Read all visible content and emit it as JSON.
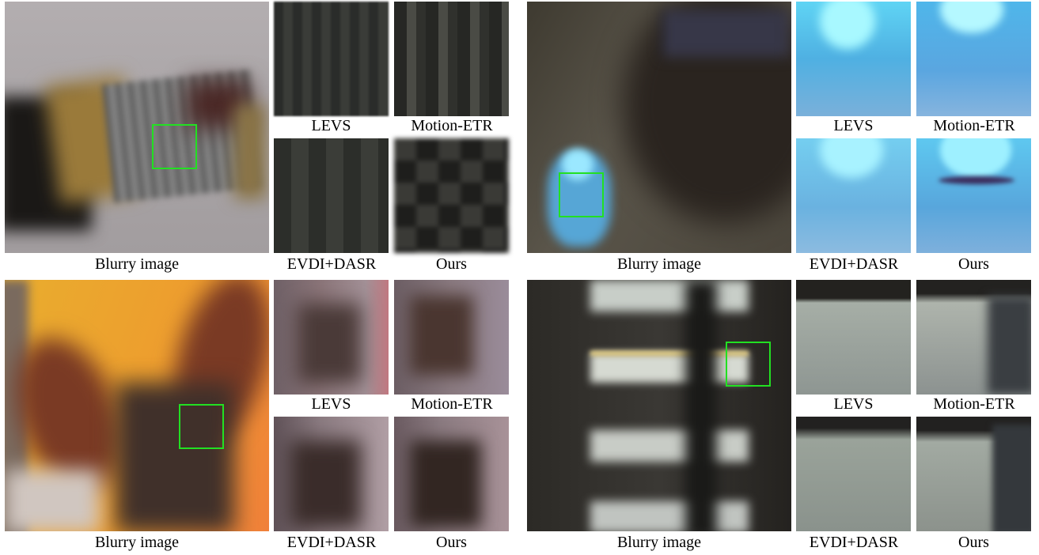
{
  "panels": [
    {
      "main_caption": "Blurry image",
      "crop_captions": [
        "LEVS",
        "Motion-ETR",
        "EVDI+DASR",
        "Ours"
      ]
    },
    {
      "main_caption": "Blurry image",
      "crop_captions": [
        "LEVS",
        "Motion-ETR",
        "EVDI+DASR",
        "Ours"
      ]
    },
    {
      "main_caption": "Blurry image",
      "crop_captions": [
        "LEVS",
        "Motion-ETR",
        "EVDI+DASR",
        "Ours"
      ]
    },
    {
      "main_caption": "Blurry image",
      "crop_captions": [
        "LEVS",
        "Motion-ETR",
        "EVDI+DASR",
        "Ours"
      ]
    }
  ],
  "roi_color": "#22e022"
}
